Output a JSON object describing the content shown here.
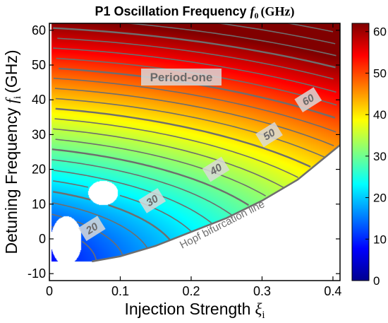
{
  "chart_data": {
    "type": "heatmap",
    "title": "P1 Oscillation Frequency",
    "title_symbol": "f",
    "title_symbol_sub": "0",
    "title_unit": "(GHz)",
    "xlabel": "Injection Strength",
    "xlabel_symbol": "ξ",
    "xlabel_symbol_sub": "i",
    "ylabel": "Detuning Frequency",
    "ylabel_symbol": "f",
    "ylabel_symbol_sub": "i",
    "ylabel_unit": "(GHz)",
    "xlim": [
      0,
      0.41
    ],
    "ylim": [
      -12,
      62
    ],
    "x_ticks": [
      0,
      0.1,
      0.2,
      0.3,
      0.4
    ],
    "x_tick_labels": [
      "0",
      "0.1",
      "0.2",
      "0.3",
      "0.4"
    ],
    "y_ticks": [
      -10,
      0,
      10,
      20,
      30,
      40,
      50,
      60
    ],
    "y_tick_labels": [
      "-10",
      "0",
      "10",
      "20",
      "30",
      "40",
      "50",
      "60"
    ],
    "colorbar": {
      "range": [
        0,
        62
      ],
      "ticks": [
        0,
        10,
        20,
        30,
        40,
        50,
        60
      ],
      "tick_labels": [
        "0",
        "10",
        "20",
        "30",
        "40",
        "50",
        "60"
      ],
      "colormap": "jet"
    },
    "contour_step": 2.5,
    "contour_labels": [
      {
        "text": "20",
        "x": 0.06,
        "y": 3,
        "value": 20
      },
      {
        "text": "30",
        "x": 0.145,
        "y": 11,
        "value": 30
      },
      {
        "text": "40",
        "x": 0.235,
        "y": 20,
        "value": 40
      },
      {
        "text": "50",
        "x": 0.31,
        "y": 30,
        "value": 50
      },
      {
        "text": "60",
        "x": 0.365,
        "y": 40,
        "value": 60
      }
    ],
    "hopf_bifurcation": {
      "x": [
        0.06,
        0.1,
        0.15,
        0.2,
        0.25,
        0.3,
        0.35,
        0.41
      ],
      "y": [
        -6.5,
        -5,
        -2,
        2,
        6,
        11,
        17,
        27
      ]
    },
    "annotations": {
      "region": "Period-one",
      "hopf_line": "Hopf bifurcation line"
    }
  },
  "colors": {
    "contour": "#6e6e6e",
    "label_box": "#d9d9d9",
    "label_text": "#6a6a6a",
    "background": "#ffffff"
  }
}
